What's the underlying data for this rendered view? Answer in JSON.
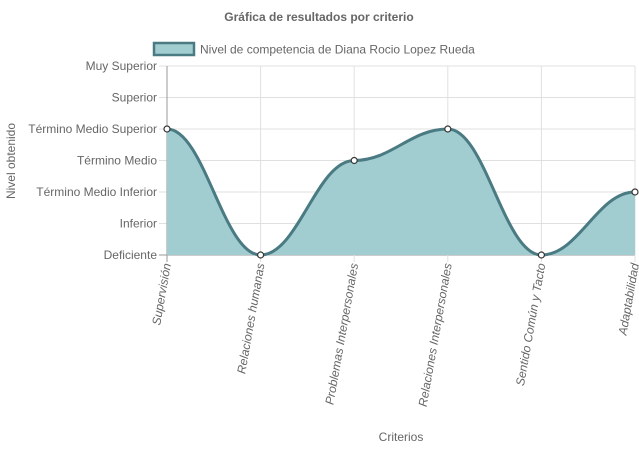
{
  "chart_data": {
    "type": "area",
    "title": "Gráfica de resultados por criterio",
    "xlabel": "Criterios",
    "ylabel": "Nivel obtenido",
    "legend_position": "top",
    "categories": [
      "Supervisión",
      "Relaciones humanas",
      "Problemas Interpersonales",
      "Relaciones Interpersonales",
      "Sentido Común y Tacto",
      "Adaptabilidad"
    ],
    "y_levels": [
      "Deficiente",
      "Inferior",
      "Término Medio Inferior",
      "Término Medio",
      "Término Medio Superior",
      "Superior",
      "Muy Superior"
    ],
    "ylim": [
      0,
      6
    ],
    "grid": true,
    "series": [
      {
        "name": "Nivel de competencia de Diana Rocio Lopez Rueda",
        "values": [
          4,
          0,
          3,
          4,
          0,
          2
        ],
        "line_color": "#4a7a82",
        "fill_color": "#a1cdd1"
      }
    ]
  }
}
